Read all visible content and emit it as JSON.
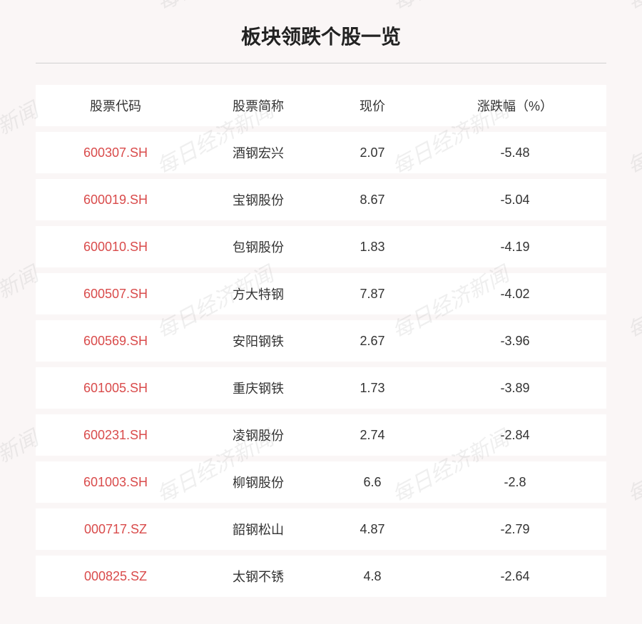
{
  "title": "板块领跌个股一览",
  "watermark_text": "每日经济新闻",
  "columns": {
    "code": "股票代码",
    "name": "股票简称",
    "price": "现价",
    "chg": "涨跌幅（%）"
  },
  "rows": [
    {
      "code": "600307.SH",
      "name": "酒钢宏兴",
      "price": "2.07",
      "chg": "-5.48"
    },
    {
      "code": "600019.SH",
      "name": "宝钢股份",
      "price": "8.67",
      "chg": "-5.04"
    },
    {
      "code": "600010.SH",
      "name": "包钢股份",
      "price": "1.83",
      "chg": "-4.19"
    },
    {
      "code": "600507.SH",
      "name": "方大特钢",
      "price": "7.87",
      "chg": "-4.02"
    },
    {
      "code": "600569.SH",
      "name": "安阳钢铁",
      "price": "2.67",
      "chg": "-3.96"
    },
    {
      "code": "601005.SH",
      "name": "重庆钢铁",
      "price": "1.73",
      "chg": "-3.89"
    },
    {
      "code": "600231.SH",
      "name": "凌钢股份",
      "price": "2.74",
      "chg": "-2.84"
    },
    {
      "code": "601003.SH",
      "name": "柳钢股份",
      "price": "6.6",
      "chg": "-2.8"
    },
    {
      "code": "000717.SZ",
      "name": "韶钢松山",
      "price": "4.87",
      "chg": "-2.79"
    },
    {
      "code": "000825.SZ",
      "name": "太钢不锈",
      "price": "4.8",
      "chg": "-2.64"
    }
  ],
  "styling": {
    "page_bg": "#faf6f6",
    "row_bg": "#ffffff",
    "code_color": "#d94b4b",
    "text_color": "#333333",
    "divider_color": "#d0d0d0",
    "title_fontsize": 28,
    "cell_fontsize": 18,
    "watermark_color": "rgba(120,120,120,0.12)",
    "watermark_fontsize": 30,
    "watermark_rotate_deg": -28
  }
}
